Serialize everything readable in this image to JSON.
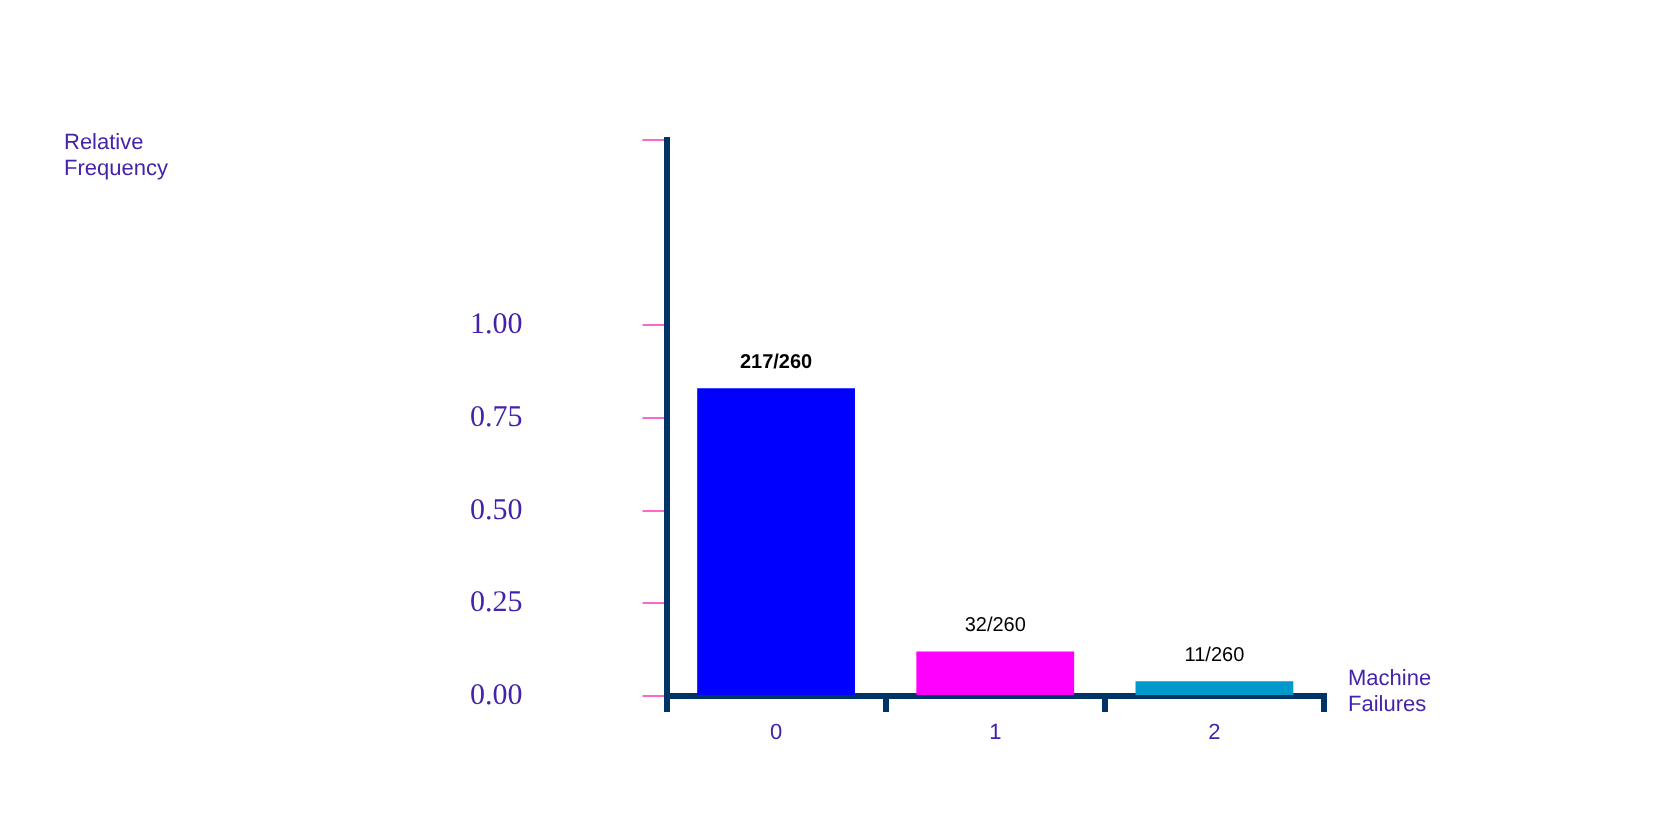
{
  "chart_data": {
    "type": "bar",
    "xlabel": "Machine Failures",
    "annotations": [
      "Relative Frequency"
    ],
    "categories": [
      "0",
      "1",
      "2"
    ],
    "values": [
      0.83,
      0.12,
      0.04
    ],
    "colors": [
      "#0000ff",
      "#ff00ff",
      "#0099cc"
    ],
    "value_labels": [
      "217/260",
      "32/260",
      "11/260"
    ],
    "ylim": [
      0,
      1.5
    ],
    "yticks": [
      {
        "value": 0,
        "label": "0.00"
      },
      {
        "value": 0.25,
        "label": "0.25"
      },
      {
        "value": 0.5,
        "label": "0.50"
      },
      {
        "value": 0.75,
        "label": "0.75"
      },
      {
        "value": 1,
        "label": "1.00"
      },
      {
        "value": 1.5,
        "label": null
      }
    ],
    "grid": false,
    "legend": false
  }
}
